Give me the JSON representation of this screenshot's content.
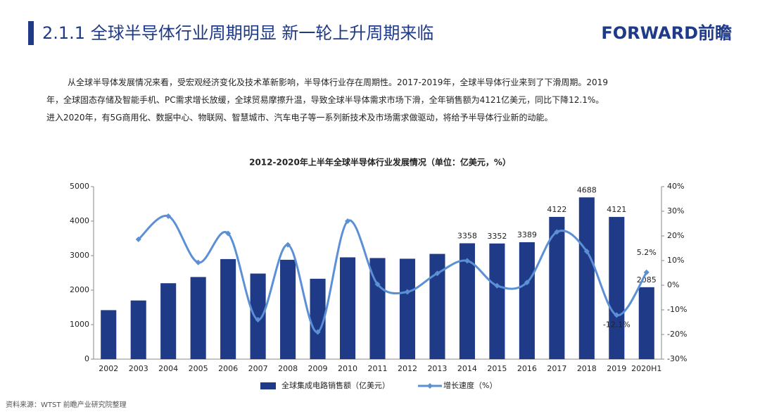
{
  "header": {
    "title": "2.1.1 全球半导体行业周期明显 新一轮上升周期来临",
    "logo": "FORWARD前瞻"
  },
  "paragraph": [
    "从全球半导体发展情况来看，受宏观经济变化及技术革新影响，半导体行业存在周期性。2017-2019年，全球半导体行业来到了下滑周期。2019",
    "年，全球固态存储及智能手机、PC需求增长放缓，全球贸易摩擦升温，导致全球半导体需求市场下滑，全年销售额为4121亿美元，同比下降12.1%。",
    "进入2020年，有5G商用化、数据中心、物联网、智慧城市、汽车电子等一系列新技术及市场需求做驱动，将给予半导体行业新的动能。"
  ],
  "chart_data": {
    "type": "bar-line",
    "title": "2012-2020年上半年全球半导体行业发展情况（单位：亿美元，%）",
    "categories": [
      "2002",
      "2003",
      "2004",
      "2005",
      "2006",
      "2007",
      "2008",
      "2009",
      "2010",
      "2011",
      "2012",
      "2013",
      "2014",
      "2015",
      "2016",
      "2017",
      "2018",
      "2019",
      "2020H1"
    ],
    "series": [
      {
        "name": "全球集成电路销售额（亿美元）",
        "type": "bar",
        "color": "#1f3a86",
        "values": [
          1420,
          1700,
          2200,
          2380,
          2900,
          2480,
          2880,
          2330,
          2950,
          2930,
          2910,
          3050,
          3358,
          3352,
          3389,
          4122,
          4688,
          4121,
          2085
        ],
        "value_labels": [
          null,
          null,
          null,
          null,
          null,
          null,
          null,
          null,
          null,
          null,
          null,
          null,
          "3358",
          "3352",
          "3389",
          "4122",
          "4688",
          "4121",
          "2085"
        ]
      },
      {
        "name": "增长速度（%）",
        "type": "line",
        "axis": "y2",
        "color": "#5b8fd6",
        "values": [
          null,
          18.6,
          28.0,
          9.2,
          21.0,
          -14.0,
          16.4,
          -19.0,
          26.0,
          0.4,
          -2.7,
          4.8,
          9.9,
          -0.2,
          1.1,
          21.6,
          13.7,
          -12.1,
          5.2
        ],
        "value_labels": [
          null,
          null,
          null,
          null,
          null,
          null,
          null,
          null,
          null,
          null,
          null,
          null,
          null,
          null,
          null,
          null,
          null,
          "-12.1%",
          "5.2%"
        ]
      }
    ],
    "ylim": [
      0,
      5000
    ],
    "yticks": [
      0,
      1000,
      2000,
      3000,
      4000,
      5000
    ],
    "y2lim": [
      -30,
      40
    ],
    "y2ticks": [
      {
        "value": -30,
        "label": "-30%"
      },
      {
        "value": -20,
        "label": "-20%"
      },
      {
        "value": -10,
        "label": "-10%"
      },
      {
        "value": 0,
        "label": "0%"
      },
      {
        "value": 10,
        "label": "10%"
      },
      {
        "value": 20,
        "label": "20%"
      },
      {
        "value": 30,
        "label": "30%"
      },
      {
        "value": 40,
        "label": "40%"
      }
    ]
  },
  "source": "资料来源：WTST 前瞻产业研究院整理"
}
